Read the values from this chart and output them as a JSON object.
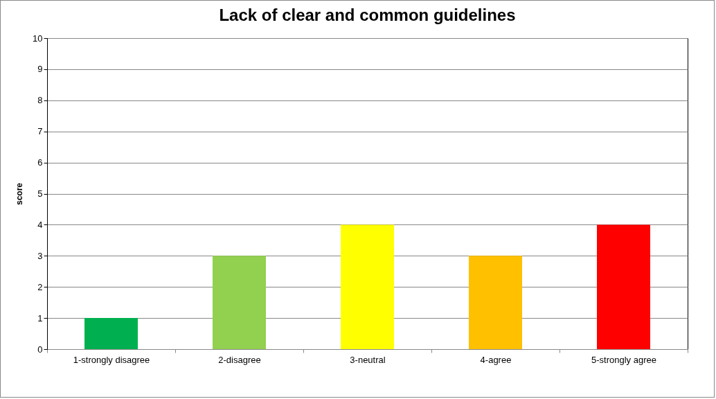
{
  "chart_data": {
    "type": "bar",
    "title": "Lack of clear and common guidelines",
    "ylabel": "score",
    "categories": [
      "1-strongly disagree",
      "2-disagree",
      "3-neutral",
      "4-agree",
      "5-strongly agree"
    ],
    "values": [
      1,
      3,
      4,
      3,
      4
    ],
    "colors": [
      "#00b050",
      "#92d050",
      "#ffff00",
      "#ffc000",
      "#ff0000"
    ],
    "ylim": [
      0,
      10
    ],
    "yticks": [
      0,
      1,
      2,
      3,
      4,
      5,
      6,
      7,
      8,
      9,
      10
    ],
    "grid": "y",
    "legend": false
  }
}
